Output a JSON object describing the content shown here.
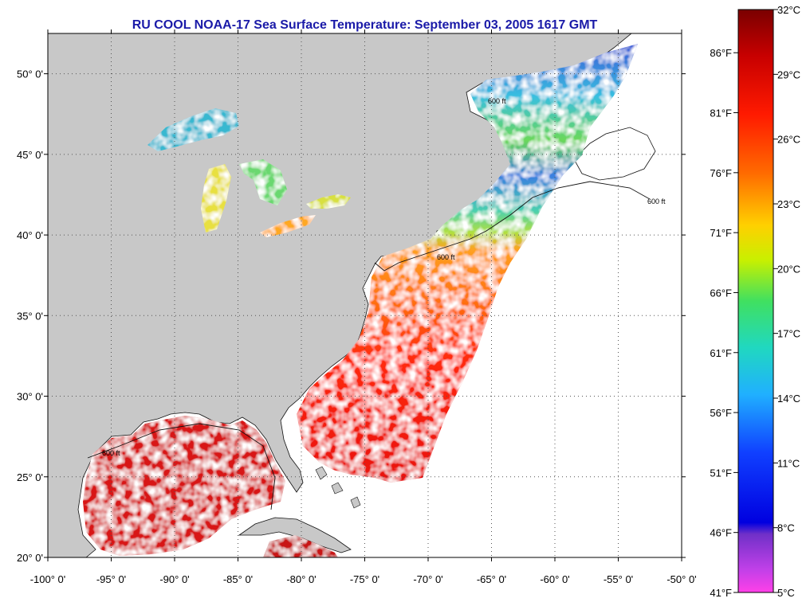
{
  "title": "RU COOL  NOAA-17  Sea Surface Temperature:  September 03, 2005 1617 GMT",
  "map": {
    "lon_range": [
      -100,
      -50
    ],
    "lat_range": [
      20,
      52.5
    ],
    "lon_ticks": [
      "-100° 0'",
      "-95° 0'",
      "-90° 0'",
      "-85° 0'",
      "-80° 0'",
      "-75° 0'",
      "-70° 0'",
      "-65° 0'",
      "-60° 0'",
      "-55° 0'",
      "-50° 0'"
    ],
    "lat_ticks": [
      "20° 0'",
      "25° 0'",
      "30° 0'",
      "35° 0'",
      "40° 0'",
      "45° 0'",
      "50° 0'"
    ],
    "isobath_label": "600 ft",
    "colors": {
      "land": "#c8c8c8",
      "ocean_nodata": "#ffffff",
      "grid": "#555555"
    }
  },
  "colorbar": {
    "celsius": [
      "32°C",
      "29°C",
      "26°C",
      "23°C",
      "20°C",
      "17°C",
      "14°C",
      "11°C",
      "8°C",
      "5°C"
    ],
    "fahrenheit": [
      "86°F",
      "81°F",
      "76°F",
      "71°F",
      "66°F",
      "61°F",
      "56°F",
      "51°F",
      "46°F",
      "41°F"
    ],
    "range_c": [
      5,
      32
    ]
  }
}
